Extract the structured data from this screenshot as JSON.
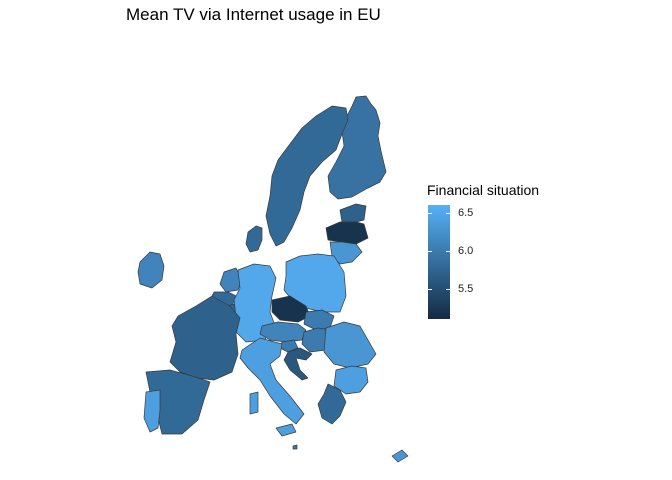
{
  "title": "Mean TV via Internet usage in EU",
  "legend": {
    "title": "Financial situation",
    "ticks": [
      {
        "label": "6.5",
        "value": 6.5
      },
      {
        "label": "6.0",
        "value": 6.0
      },
      {
        "label": "5.5",
        "value": 5.5
      }
    ],
    "range": [
      5.1,
      6.6
    ],
    "color_low": "#132B43",
    "color_high": "#56B1F7"
  },
  "chart_data": {
    "type": "choropleth",
    "title": "Mean TV via Internet usage in EU",
    "legend_title": "Financial situation",
    "legend_placement": "right",
    "value_range": [
      5.1,
      6.6
    ],
    "colors": {
      "low": "#132B43",
      "high": "#56B1F7"
    },
    "regions": [
      {
        "country": "Finland",
        "value": 5.9
      },
      {
        "country": "Sweden",
        "value": 5.8
      },
      {
        "country": "Estonia",
        "value": 5.7
      },
      {
        "country": "Latvia",
        "value": 5.2
      },
      {
        "country": "Lithuania",
        "value": 6.3
      },
      {
        "country": "Denmark",
        "value": 5.8
      },
      {
        "country": "Ireland",
        "value": 6.1
      },
      {
        "country": "Netherlands",
        "value": 6.1
      },
      {
        "country": "Belgium",
        "value": 5.8
      },
      {
        "country": "Luxembourg",
        "value": 5.8
      },
      {
        "country": "Germany",
        "value": 6.5
      },
      {
        "country": "Poland",
        "value": 6.5
      },
      {
        "country": "Czechia",
        "value": 5.2
      },
      {
        "country": "Slovakia",
        "value": 6.0
      },
      {
        "country": "Austria",
        "value": 6.1
      },
      {
        "country": "Hungary",
        "value": 6.0
      },
      {
        "country": "Slovenia",
        "value": 6.0
      },
      {
        "country": "Croatia",
        "value": 5.6
      },
      {
        "country": "Romania",
        "value": 6.3
      },
      {
        "country": "Bulgaria",
        "value": 6.4
      },
      {
        "country": "France",
        "value": 5.7
      },
      {
        "country": "Spain",
        "value": 5.8
      },
      {
        "country": "Portugal",
        "value": 6.4
      },
      {
        "country": "Italy",
        "value": 6.4
      },
      {
        "country": "Greece",
        "value": 5.8
      },
      {
        "country": "Cyprus",
        "value": 6.3
      },
      {
        "country": "Malta",
        "value": 6.0
      }
    ]
  }
}
